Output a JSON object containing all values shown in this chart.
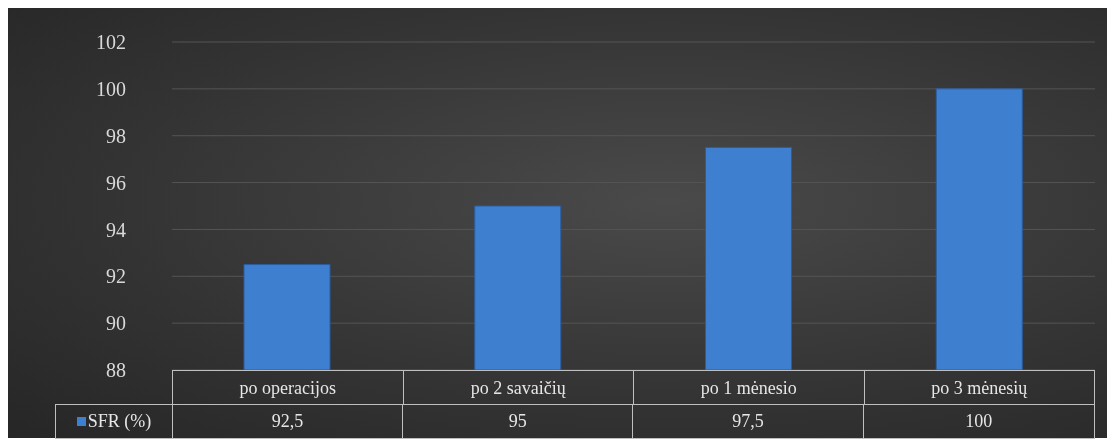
{
  "chart_data": {
    "type": "bar",
    "categories": [
      "po operacijos",
      "po 2 savaičių",
      "po 1 mėnesio",
      "po 3 mėnesių"
    ],
    "series": [
      {
        "name": "SFR (%)",
        "color": "#3f7fd0",
        "values": [
          92.5,
          95,
          97.5,
          100
        ],
        "value_labels": [
          "92,5",
          "95",
          "97,5",
          "100"
        ]
      }
    ],
    "ylim": [
      88,
      102
    ],
    "yticks": [
      88,
      90,
      92,
      94,
      96,
      98,
      100,
      102
    ],
    "grid": "y"
  }
}
